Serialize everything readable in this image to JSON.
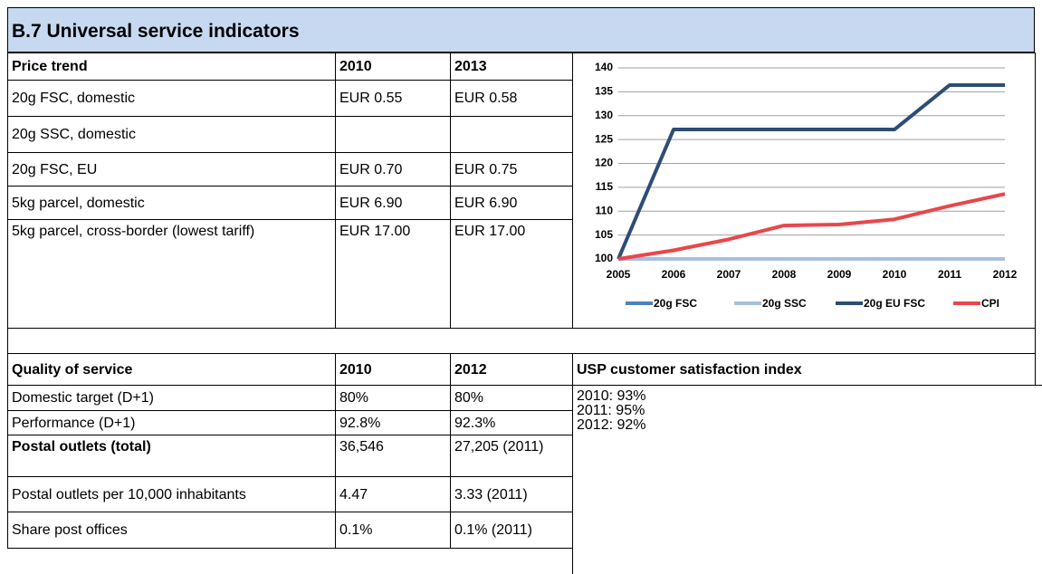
{
  "title": "B.7 Universal service indicators",
  "price_table": {
    "header": [
      "Price trend",
      "2010",
      "2013"
    ],
    "rows": [
      [
        "20g FSC, domestic",
        "EUR 0.55",
        "EUR 0.58"
      ],
      [
        "20g SSC, domestic",
        null,
        null
      ],
      [
        "20g FSC, EU",
        "EUR 0.70",
        "EUR 0.75"
      ],
      [
        "5kg parcel, domestic",
        "EUR 6.90",
        "EUR 6.90"
      ],
      [
        "5kg parcel, cross-border (lowest tariff)",
        "EUR 17.00",
        "EUR 17.00"
      ]
    ]
  },
  "quality_table": {
    "header": [
      "Quality of service",
      "2010",
      "2012"
    ],
    "rows": [
      [
        "Domestic target (D+1)",
        "80%",
        "80%"
      ],
      [
        "Performance (D+1)",
        "92.8%",
        "92.3%"
      ],
      [
        "Postal outlets (total)",
        "36,546",
        "27,205 (2011)"
      ],
      [
        "Postal outlets per 10,000 inhabitants",
        "4.47",
        "3.33 (2011)"
      ],
      [
        "Share post offices",
        "0.1%",
        "0.1% (2011)"
      ]
    ]
  },
  "satisfaction": {
    "title": "USP customer satisfaction index",
    "lines": [
      "2010: 93%",
      "2011: 95%",
      "2012: 92%"
    ]
  },
  "chart_data": {
    "type": "line",
    "categories": [
      "2005",
      "2006",
      "2007",
      "2008",
      "2009",
      "2010",
      "2011",
      "2012"
    ],
    "series": [
      {
        "name": "20g FSC",
        "color": "#4f81bd",
        "values": [
          100,
          100,
          100,
          100,
          100,
          100,
          100,
          100
        ]
      },
      {
        "name": "20g SSC",
        "color": "#a7c0de",
        "values": [
          100,
          100,
          100,
          100,
          100,
          100,
          100,
          100
        ]
      },
      {
        "name": "20g EU FSC",
        "color": "#2c4d75",
        "values": [
          100,
          127.1,
          127.1,
          127.1,
          127.1,
          127.1,
          136.4,
          136.4
        ]
      },
      {
        "name": "CPI",
        "color": "#e8474b",
        "values": [
          100,
          101.8,
          104.1,
          107,
          107.2,
          108.3,
          111.1,
          113.6
        ]
      }
    ],
    "ylim": [
      100,
      140
    ],
    "yticks": [
      100,
      105,
      110,
      115,
      120,
      125,
      130,
      135,
      140
    ],
    "grid": true,
    "legend": "bottom"
  }
}
